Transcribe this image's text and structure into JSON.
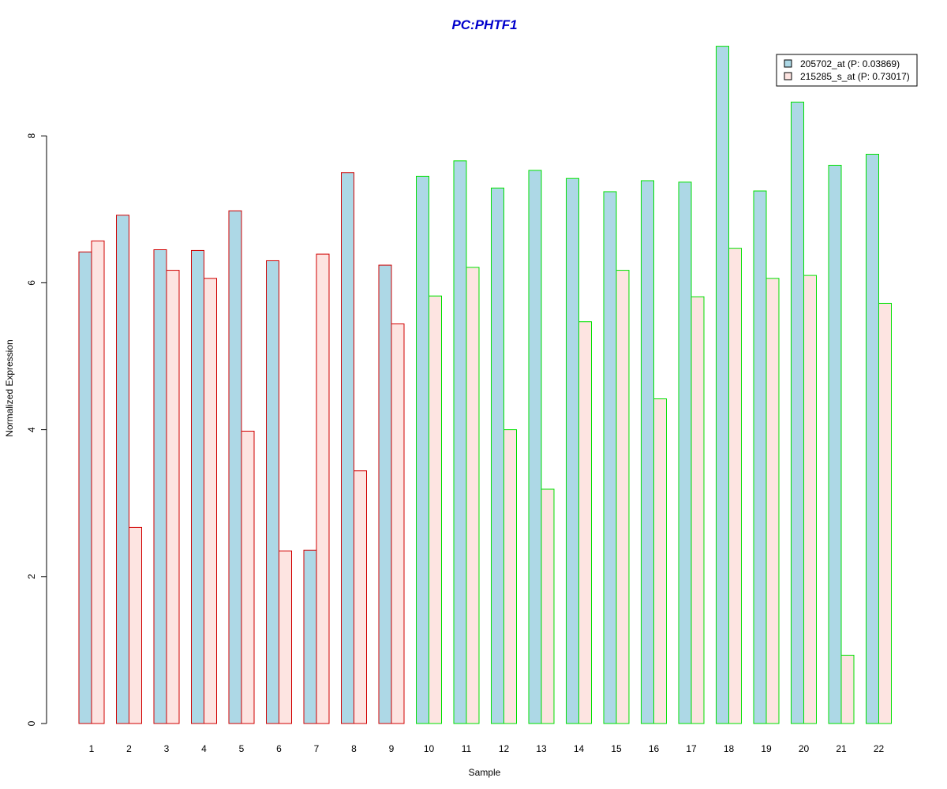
{
  "chart_data": {
    "type": "bar",
    "title": "PC:PHTF1",
    "xlabel": "Sample",
    "ylabel": "Normalized Expression",
    "ylim": [
      0,
      9.2
    ],
    "yticks": [
      "0",
      "2",
      "4",
      "6",
      "8"
    ],
    "categories": [
      "1",
      "2",
      "3",
      "4",
      "5",
      "6",
      "7",
      "8",
      "9",
      "10",
      "11",
      "12",
      "13",
      "14",
      "15",
      "16",
      "17",
      "18",
      "19",
      "20",
      "21",
      "22"
    ],
    "group_border_colors": [
      "#d00000",
      "#d00000",
      "#d00000",
      "#d00000",
      "#d00000",
      "#d00000",
      "#d00000",
      "#d00000",
      "#d00000",
      "#00e000",
      "#00e000",
      "#00e000",
      "#00e000",
      "#00e000",
      "#00e000",
      "#00e000",
      "#00e000",
      "#00e000",
      "#00e000",
      "#00e000",
      "#00e000",
      "#00e000"
    ],
    "series": [
      {
        "name": "205702_at (P: 0.03869)",
        "fill": "#add8e6",
        "values": [
          6.42,
          6.92,
          6.45,
          6.44,
          6.98,
          6.3,
          2.36,
          7.5,
          6.24,
          7.45,
          7.66,
          7.29,
          7.53,
          7.42,
          7.24,
          7.39,
          7.37,
          9.22,
          7.25,
          8.46,
          7.6,
          7.75
        ]
      },
      {
        "name": "215285_s_at (P: 0.73017)",
        "fill": "#fde4e1",
        "values": [
          6.57,
          2.67,
          6.17,
          6.06,
          3.98,
          2.35,
          6.39,
          3.44,
          5.44,
          5.82,
          6.21,
          4.0,
          3.19,
          5.47,
          6.17,
          4.42,
          5.81,
          6.47,
          6.06,
          6.1,
          0.93,
          5.72
        ]
      }
    ],
    "legend": {
      "position": "top-right"
    },
    "grid": false
  }
}
